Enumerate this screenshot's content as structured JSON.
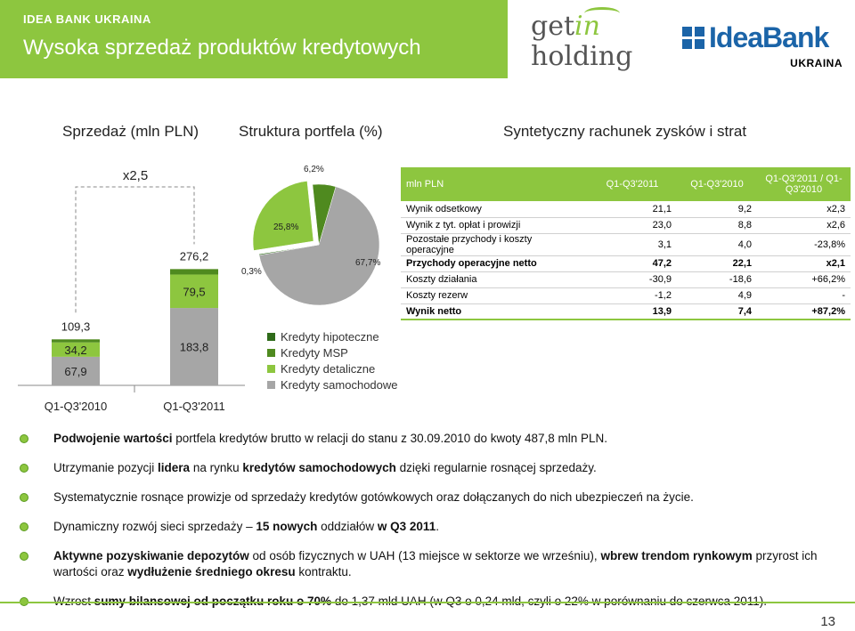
{
  "header": {
    "bank_name": "IDEA BANK UKRAINA",
    "title": "Wysoka sprzedaż produktów kredytowych"
  },
  "logos": {
    "getin_line1_a": "get",
    "getin_line1_b": "in",
    "getin_line2": "holding",
    "idea_text": "IdeaBank",
    "idea_sub": "UKRAINA"
  },
  "sections": {
    "sales": "Sprzedaż (mln PLN)",
    "portfolio": "Struktura portfela (%)",
    "pl": "Syntetyczny rachunek zysków i strat"
  },
  "chart_data": [
    {
      "type": "bar",
      "stacked": true,
      "categories": [
        "Q1-Q3'2010",
        "Q1-Q3'2011"
      ],
      "series": [
        {
          "values": [
            67.9,
            183.8
          ],
          "color": "#a6a6a6"
        },
        {
          "values": [
            34.2,
            79.5
          ],
          "color": "#8dc63f"
        },
        {
          "values": [
            7.2,
            12.9
          ],
          "color": "#4f8a1f"
        }
      ],
      "segment_labels": [
        [
          "67,9",
          "34,2"
        ],
        [
          "183,8",
          "79,5"
        ]
      ],
      "totals": [
        109.3,
        276.2
      ],
      "total_labels": [
        "109,3",
        "276,2"
      ],
      "multiplier_label": "x2,5",
      "ylim": [
        0,
        300
      ]
    },
    {
      "type": "pie",
      "slices": [
        {
          "name": "Kredyty hipoteczne",
          "value": 0.3,
          "label": "0,3%",
          "color": "#2f6b1a"
        },
        {
          "name": "Kredyty MSP",
          "value": 6.2,
          "label": "6,2%",
          "color": "#4f8a1f"
        },
        {
          "name": "Kredyty detaliczne",
          "value": 25.8,
          "label": "25,8%",
          "color": "#8dc63f"
        },
        {
          "name": "Kredyty samochodowe",
          "value": 67.7,
          "label": "67,7%",
          "color": "#a6a6a6"
        }
      ]
    }
  ],
  "legend": [
    {
      "label": "Kredyty hipoteczne",
      "color": "#2f6b1a"
    },
    {
      "label": "Kredyty MSP",
      "color": "#4f8a1f"
    },
    {
      "label": "Kredyty detaliczne",
      "color": "#8dc63f"
    },
    {
      "label": "Kredyty samochodowe",
      "color": "#a6a6a6"
    }
  ],
  "table": {
    "headers": [
      "mln PLN",
      "Q1-Q3'2011",
      "Q1-Q3'2010",
      "Q1-Q3'2011 / Q1-Q3'2010"
    ],
    "rows": [
      {
        "label": "Wynik odsetkowy",
        "a": "21,1",
        "b": "9,2",
        "c": "x2,3",
        "bold": false
      },
      {
        "label": "Wynik z tyt. opłat i prowizji",
        "a": "23,0",
        "b": "8,8",
        "c": "x2,6",
        "bold": false
      },
      {
        "label": "Pozostałe przychody i koszty operacyjne",
        "a": "3,1",
        "b": "4,0",
        "c": "-23,8%",
        "bold": false
      },
      {
        "label": "Przychody operacyjne netto",
        "a": "47,2",
        "b": "22,1",
        "c": "x2,1",
        "bold": true
      },
      {
        "label": "Koszty działania",
        "a": "-30,9",
        "b": "-18,6",
        "c": "+66,2%",
        "bold": false
      },
      {
        "label": "Koszty rezerw",
        "a": "-1,2",
        "b": "4,9",
        "c": "-",
        "bold": false
      },
      {
        "label": "Wynik netto",
        "a": "13,9",
        "b": "7,4",
        "c": "+87,2%",
        "bold": true
      }
    ]
  },
  "bullets": [
    [
      {
        "t": "Podwojenie wartości",
        "b": true
      },
      {
        "t": " portfela kredytów brutto w relacji do stanu z 30.09.2010 do kwoty 487,8 mln PLN.",
        "b": false
      }
    ],
    [
      {
        "t": "Utrzymanie pozycji ",
        "b": false
      },
      {
        "t": "lidera",
        "b": true
      },
      {
        "t": " na rynku ",
        "b": false
      },
      {
        "t": "kredytów samochodowych",
        "b": true
      },
      {
        "t": " dzięki regularnie rosnącej sprzedaży.",
        "b": false
      }
    ],
    [
      {
        "t": "Systematycznie rosnące prowizje od sprzedaży kredytów gotówkowych oraz dołączanych do nich ubezpieczeń na życie.",
        "b": false
      }
    ],
    [
      {
        "t": "Dynamiczny rozwój sieci sprzedaży – ",
        "b": false
      },
      {
        "t": "15 nowych",
        "b": true
      },
      {
        "t": " oddziałów ",
        "b": false
      },
      {
        "t": "w Q3 2011",
        "b": true
      },
      {
        "t": ".",
        "b": false
      }
    ],
    [
      {
        "t": "Aktywne pozyskiwanie depozytów",
        "b": true
      },
      {
        "t": " od osób fizycznych w UAH (13 miejsce w sektorze we wrześniu), ",
        "b": false
      },
      {
        "t": "wbrew trendom rynkowym",
        "b": true
      },
      {
        "t": " przyrost ich wartości oraz ",
        "b": false
      },
      {
        "t": "wydłużenie średniego okresu",
        "b": true
      },
      {
        "t": " kontraktu.",
        "b": false
      }
    ],
    [
      {
        "t": "Wzrost ",
        "b": false
      },
      {
        "t": "sumy bilansowej od początku roku o 70%",
        "b": true
      },
      {
        "t": " do 1,37 mld UAH (w Q3 o 0,24 mld, czyli o 22% w porównaniu do czerwca 2011).",
        "b": false
      }
    ]
  ],
  "page_number": "13"
}
